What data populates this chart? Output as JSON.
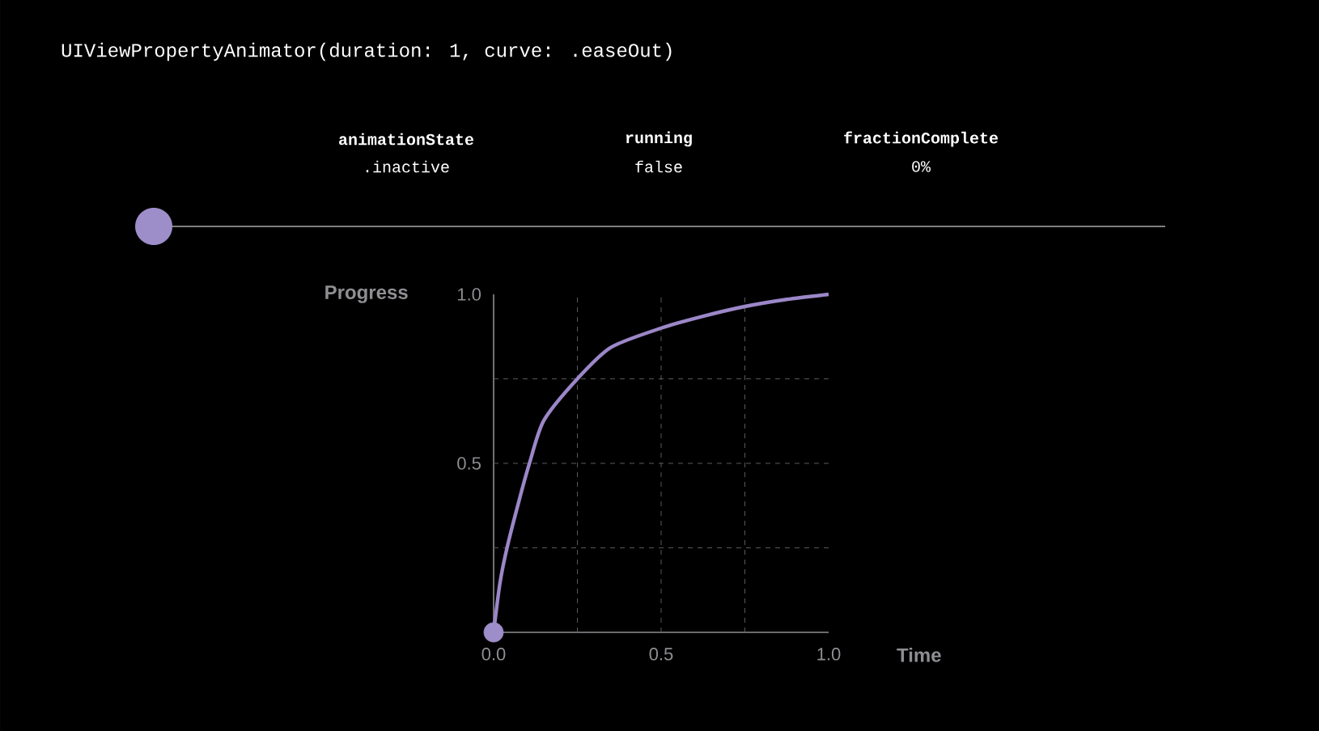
{
  "chart_data": {
    "type": "line",
    "title": "UIViewPropertyAnimator(duration: 1, curve: .easeOut)",
    "xlabel": "Time",
    "ylabel": "Progress",
    "annotations": [
      "animationState",
      ".inactive",
      "running",
      "false",
      "fractionComplete",
      "0%"
    ],
    "xlim": [
      0,
      1
    ],
    "ylim": [
      0,
      1
    ],
    "xticks": [
      {
        "value": 0,
        "label": "0.0"
      },
      {
        "value": 0.25,
        "label": null
      },
      {
        "value": 0.5,
        "label": "0.5"
      },
      {
        "value": 0.75,
        "label": null
      },
      {
        "value": 1,
        "label": "1.0"
      }
    ],
    "yticks": [
      {
        "value": 0,
        "label": null
      },
      {
        "value": 0.25,
        "label": null
      },
      {
        "value": 0.5,
        "label": "0.5"
      },
      {
        "value": 0.75,
        "label": null
      },
      {
        "value": 1,
        "label": "1.0"
      }
    ],
    "grid": true,
    "series": [
      {
        "color": "#9b87c8",
        "marker": "none",
        "x": [
          0,
          0.019,
          0.04,
          0.075,
          0.107,
          0.15,
          0.25,
          0.35,
          0.5,
          0.625,
          0.75,
          0.875,
          1
        ],
        "values": [
          0,
          0.146,
          0.25,
          0.386,
          0.5,
          0.627,
          0.75,
          0.843,
          0.9,
          0.935,
          0.964,
          0.985,
          1
        ]
      },
      {
        "type": "scatter",
        "color": "#9d8ec9",
        "marker": "circle",
        "x": [
          0
        ],
        "values": [
          0
        ]
      }
    ]
  }
}
